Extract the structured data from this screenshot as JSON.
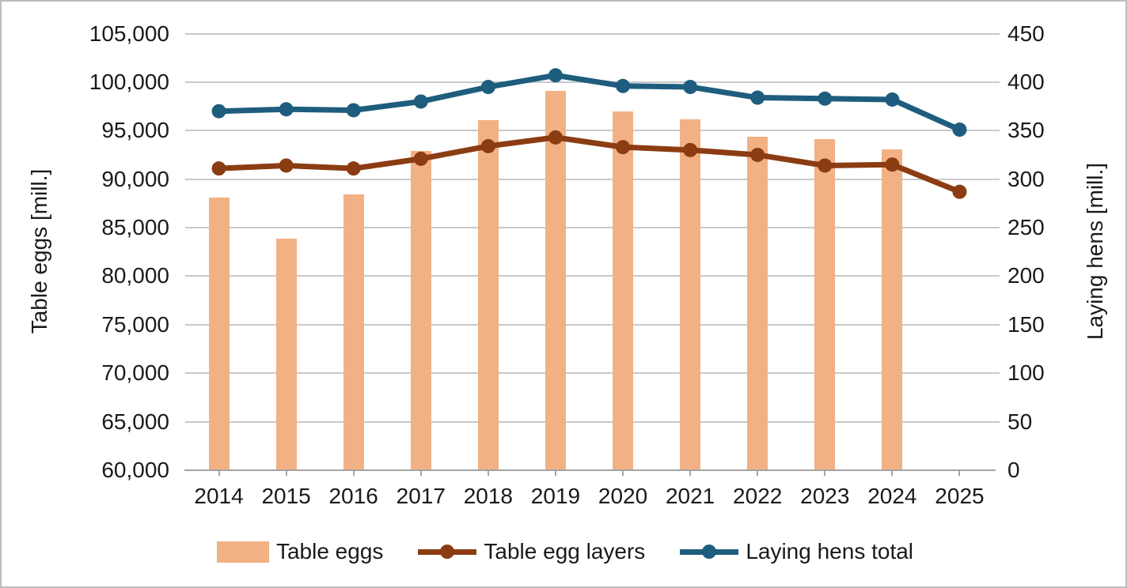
{
  "chart_data": {
    "type": "combo",
    "x": [
      "2014",
      "2015",
      "2016",
      "2017",
      "2018",
      "2019",
      "2020",
      "2021",
      "2022",
      "2023",
      "2024",
      "2025"
    ],
    "series": [
      {
        "name": "Table eggs",
        "type": "bar",
        "axis": "left",
        "color": "#f2b184",
        "values": [
          88100,
          83900,
          88400,
          92900,
          96100,
          99100,
          97000,
          96200,
          94400,
          94100,
          93100,
          null
        ]
      },
      {
        "name": "Table egg layers",
        "type": "line",
        "axis": "right",
        "color": "#8b3c12",
        "values": [
          311,
          314,
          311,
          321,
          334,
          343,
          333,
          330,
          325,
          314,
          315,
          287
        ]
      },
      {
        "name": "Laying hens total",
        "type": "line",
        "axis": "right",
        "color": "#1e5d7d",
        "values": [
          370,
          372,
          371,
          380,
          395,
          407,
          396,
          395,
          384,
          383,
          382,
          351
        ]
      }
    ],
    "left_axis": {
      "label": "Table eggs [mill.]",
      "min": 60000,
      "max": 105000,
      "step": 5000,
      "format": "thousands"
    },
    "right_axis": {
      "label": "Laying hens [mill.]",
      "min": 0,
      "max": 450,
      "step": 50,
      "format": "plain"
    },
    "grid": true,
    "legend_position": "bottom"
  },
  "colors": {
    "gridline": "#c9c9c9",
    "axis_line": "#a3a3a3",
    "text": "#1a1a1a",
    "frame_border": "#bdbdbd",
    "background": "#ffffff"
  }
}
